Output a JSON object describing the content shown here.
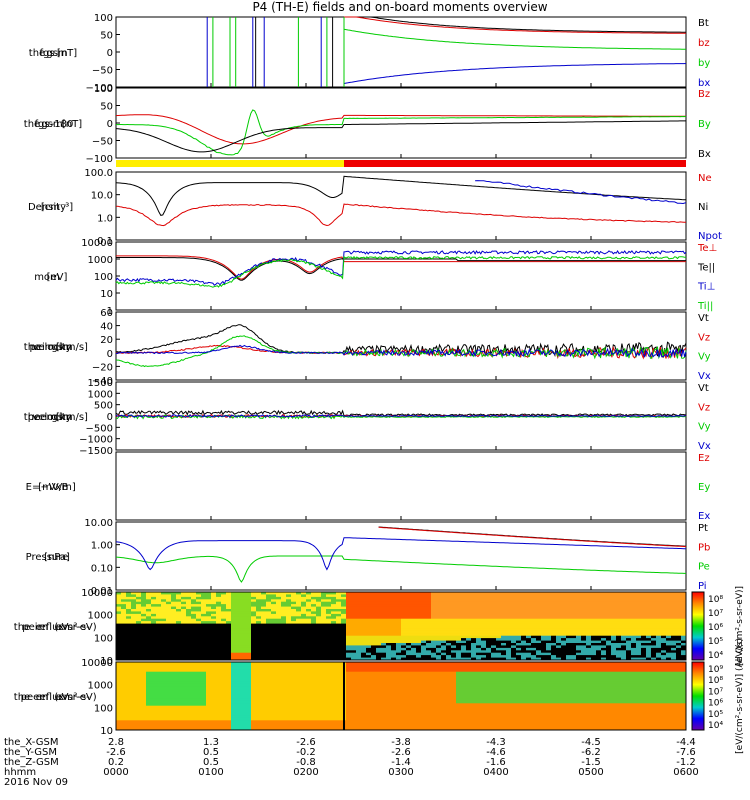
{
  "title": "P4 (TH-E) fields and on-board moments overview",
  "chart_data": {
    "type": "line",
    "date": "2016 Nov 09",
    "time_axis": {
      "ticks": [
        "0000",
        "0100",
        "0200",
        "0300",
        "0400",
        "0500",
        "0600"
      ],
      "rows": [
        {
          "label": "the_X-GSM",
          "values": [
            "2.8",
            "1.3",
            "-2.6",
            "-3.8",
            "-4.3",
            "-4.5",
            "-4.4"
          ]
        },
        {
          "label": "the_Y-GSM",
          "values": [
            "-2.6",
            "0.5",
            "-0.2",
            "-2.6",
            "-4.6",
            "-6.2",
            "-7.6"
          ]
        },
        {
          "label": "the_Z-GSM",
          "values": [
            "0.2",
            "0.5",
            "-0.8",
            "-1.4",
            "-1.6",
            "-1.5",
            "-1.2"
          ]
        },
        {
          "label": "hhmm",
          "values": [
            "0000",
            "0100",
            "0200",
            "0300",
            "0400",
            "0500",
            "0600"
          ]
        }
      ]
    },
    "panels": [
      {
        "id": "fgs",
        "ylabel": [
          "the",
          "fgs",
          "gsm",
          "[nT]"
        ],
        "yticks": [
          "100",
          "50",
          "0",
          "−50",
          "−100"
        ],
        "ylim": [
          -100,
          100
        ],
        "legend": [
          "Bt",
          "bz",
          "by",
          "bx"
        ],
        "legend_colors": [
          "#000000",
          "#dd0000",
          "#00cc00",
          "#0000cc"
        ]
      },
      {
        "id": "fgs_theta",
        "ylabel": [
          "the",
          "fgs",
          "gsm",
          "-180",
          "[nT]"
        ],
        "yticks": [
          "100",
          "50",
          "0",
          "−50",
          "−100"
        ],
        "ylim": [
          -120,
          110
        ],
        "legend": [
          "Bz",
          "By",
          "Bx"
        ],
        "legend_colors": [
          "#dd0000",
          "#00cc00",
          "#000000"
        ]
      },
      {
        "id": "density",
        "ylabel": [
          "Density",
          "[cm⁻³]"
        ],
        "yticks": [
          "100.0",
          "10.0",
          "1.0",
          "0.1"
        ],
        "ylim": [
          0.1,
          200
        ],
        "log": true,
        "legend": [
          "Ne",
          "Ni",
          "Npot"
        ],
        "legend_colors": [
          "#dd0000",
          "#000000",
          "#0000cc"
        ]
      },
      {
        "id": "temperature",
        "ylabel": [
          "mom",
          "[eV]"
        ],
        "yticks": [
          "10000",
          "1000",
          "100",
          "10",
          "1"
        ],
        "ylim": [
          1,
          10000
        ],
        "log": true,
        "legend": [
          "Te⊥",
          "Te||",
          "Ti⊥",
          "Ti||"
        ],
        "legend_colors": [
          "#dd0000",
          "#000000",
          "#0000cc",
          "#00cc00"
        ]
      },
      {
        "id": "peim_velocity",
        "ylabel": [
          "the",
          "peim",
          "velocity",
          "gsm",
          "[km/s]"
        ],
        "yticks": [
          "60",
          "40",
          "20",
          "0",
          "−20",
          "−40"
        ],
        "ylim": [
          -40,
          60
        ],
        "legend": [
          "Vt",
          "Vz",
          "Vy",
          "Vx"
        ],
        "legend_colors": [
          "#000000",
          "#dd0000",
          "#00cc00",
          "#0000cc"
        ]
      },
      {
        "id": "peem_velocity",
        "ylabel": [
          "the",
          "peem",
          "velocity",
          "gsm",
          "[km/s]"
        ],
        "yticks": [
          "1500",
          "1000",
          "500",
          "0",
          "−500",
          "−1000",
          "−1500"
        ],
        "ylim": [
          -1500,
          1500
        ],
        "legend": [
          "Vt",
          "Vz",
          "Vy",
          "Vx"
        ],
        "legend_colors": [
          "#000000",
          "#dd0000",
          "#00cc00",
          "#0000cc"
        ]
      },
      {
        "id": "efield",
        "ylabel": [
          "E=−VxB",
          "[mV/m]"
        ],
        "yticks": [],
        "legend": [
          "Ez",
          "Ey",
          "Ex"
        ],
        "legend_colors": [
          "#dd0000",
          "#00cc00",
          "#0000cc"
        ]
      },
      {
        "id": "pressure",
        "ylabel": [
          "Pressure",
          "[nPa]"
        ],
        "yticks": [
          "10.00",
          "1.00",
          "0.10",
          "0.01"
        ],
        "ylim": [
          0.005,
          50
        ],
        "log": true,
        "legend": [
          "Pt",
          "Pb",
          "Pe",
          "Pi"
        ],
        "legend_colors": [
          "#000000",
          "#dd0000",
          "#00cc00",
          "#0000cc"
        ]
      },
      {
        "id": "peir_spec",
        "ylabel": [
          "the",
          "peir",
          "en",
          "eflux",
          "eV",
          "(cm²-s-",
          "sr-eV)"
        ],
        "yticks": [
          "10000",
          "1000",
          "100",
          "10"
        ],
        "ylim": [
          5,
          30000
        ],
        "log": true,
        "colorbar": {
          "label": "[eV/(cm²-s-sr-eV)]",
          "ticks": [
            "10⁸",
            "10⁷",
            "10⁶",
            "10⁵",
            "10⁴"
          ]
        }
      },
      {
        "id": "peer_spec",
        "ylabel": [
          "the",
          "peer",
          "en",
          "eflux",
          "eV",
          "(cm²-s-",
          "sr-eV)"
        ],
        "yticks": [
          "10000",
          "1000",
          "100",
          "10"
        ],
        "ylim": [
          5,
          30000
        ],
        "log": true,
        "colorbar": {
          "label": "[eV/(cm²-s-sr-eV)] (All Qs)",
          "ticks": [
            "10⁹",
            "10⁸",
            "10⁷",
            "10⁶",
            "10⁵",
            "10⁴"
          ]
        }
      }
    ],
    "mode_bar": {
      "segments": [
        {
          "from": 0,
          "to": 0.4,
          "color": "#ffee00"
        },
        {
          "from": 0.4,
          "to": 1,
          "color": "#ee0000"
        }
      ]
    },
    "series_shape_note": ""
  }
}
